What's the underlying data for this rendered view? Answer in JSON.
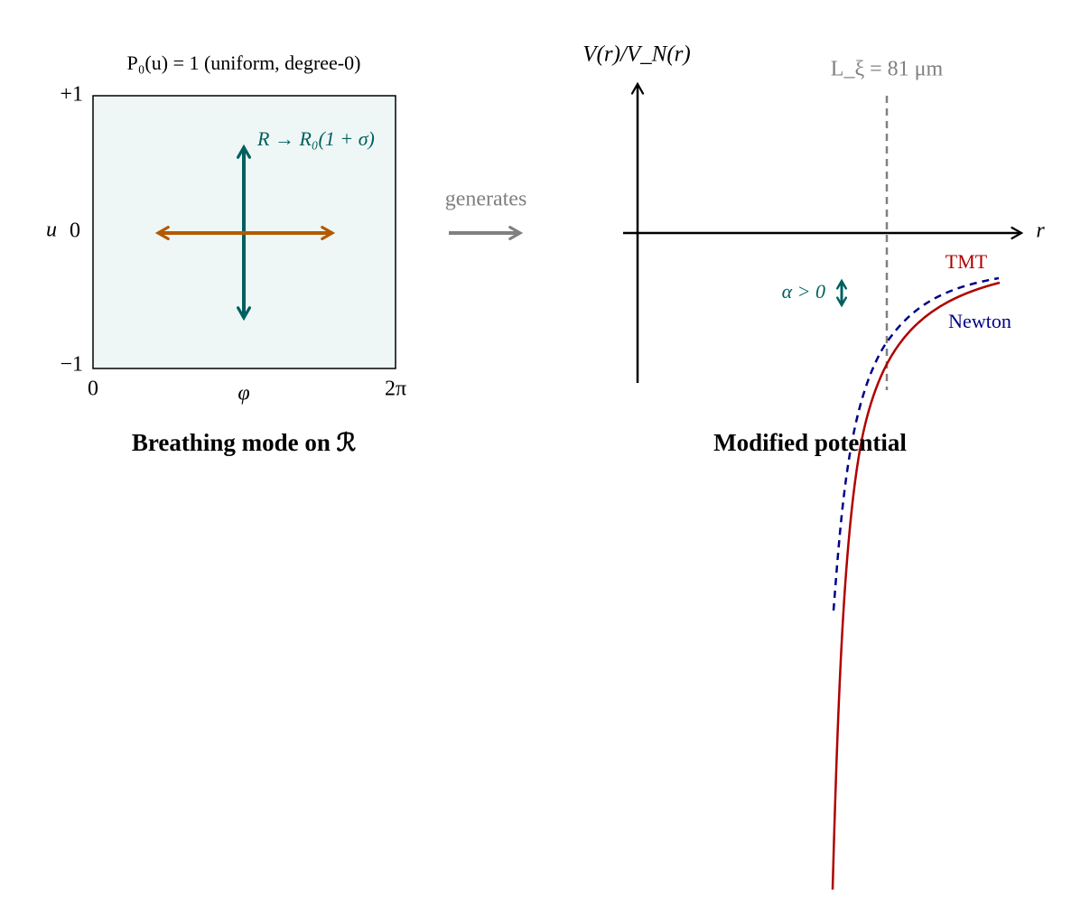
{
  "left_panel": {
    "caption": "P₀(u) = 1 (uniform, degree-0)",
    "u_max": "+1",
    "u_min": "−1",
    "u_label": "u",
    "u_zero": "0",
    "phi_min": "0",
    "phi_label": "φ",
    "phi_max": "2π",
    "radius_label": "R → R₀(1 + σ)",
    "title": "Breathing mode on ℛ"
  },
  "connector": {
    "label": "generates"
  },
  "right_panel": {
    "y_label": "V(r)/V_N(r)",
    "x_label": "r",
    "scale_label": "L_ξ = 81 μm",
    "tmt_label": "TMT",
    "newton_label": "Newton",
    "alpha_label": "α > 0",
    "title": "Modified potential"
  }
}
